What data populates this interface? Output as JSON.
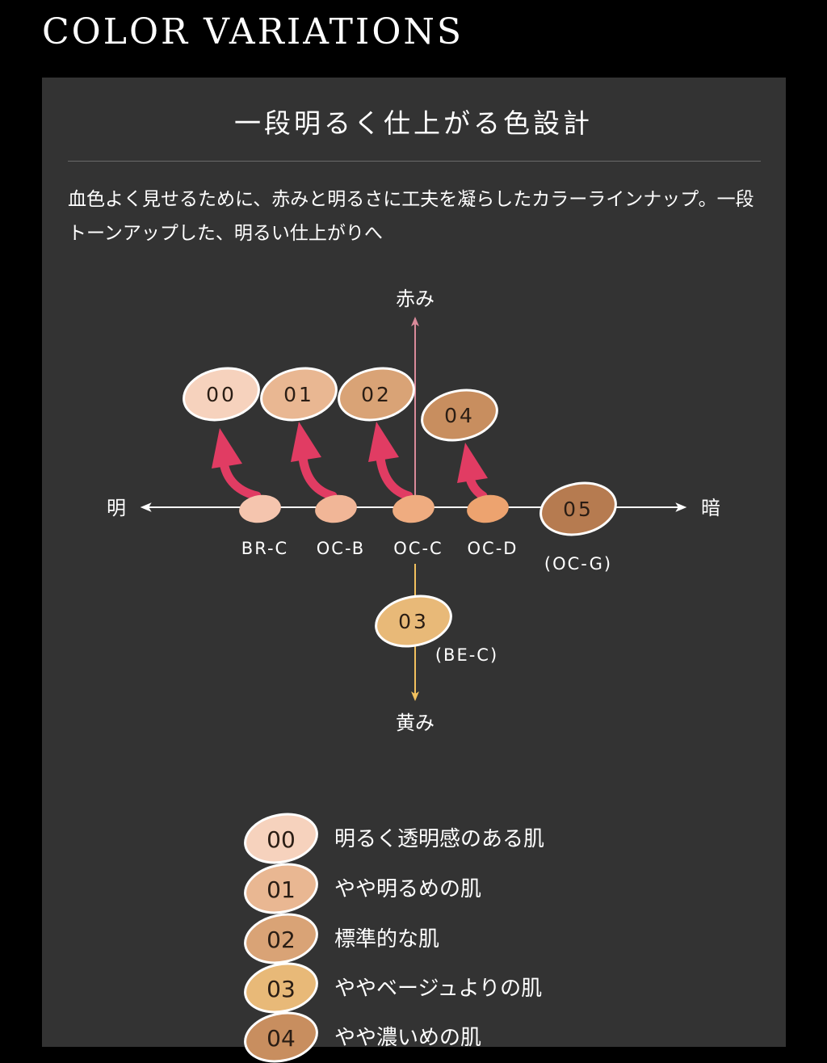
{
  "header": {
    "title": "COLOR VARIATIONS"
  },
  "panel": {
    "heading": "一段明るく仕上がる色設計",
    "description": "血色よく見せるために、赤みと明るさに工夫を凝らしたカラーラインナップ。一段トーンアップした、明るい仕上がりへ"
  },
  "diagram": {
    "axis_labels": {
      "up": "赤み",
      "down": "黄み",
      "left": "明",
      "right": "暗"
    },
    "colors": {
      "arrow_red": "#e13c63",
      "axis_red": "#d98a9a",
      "axis_yellow": "#f2c15e",
      "axis_white": "#ffffff"
    },
    "base_shades": [
      {
        "code": "BR-C",
        "color": "#f5c5ae"
      },
      {
        "code": "OC-B",
        "color": "#f1b697"
      },
      {
        "code": "OC-C",
        "color": "#efac80"
      },
      {
        "code": "OC-D",
        "color": "#eda36f"
      }
    ],
    "shades": [
      {
        "number": "00",
        "color": "#f6d2bd"
      },
      {
        "number": "01",
        "color": "#e9b792"
      },
      {
        "number": "02",
        "color": "#d9a376"
      },
      {
        "number": "04",
        "color": "#c88e5f"
      },
      {
        "number": "05",
        "color": "#b67b50",
        "base": "(OC-G)"
      },
      {
        "number": "03",
        "color": "#e8b978",
        "base": "(BE-C)"
      }
    ]
  },
  "legend": [
    {
      "number": "00",
      "label": "明るく透明感のある肌",
      "color": "#f6d2bd"
    },
    {
      "number": "01",
      "label": "やや明るめの肌",
      "color": "#e9b792"
    },
    {
      "number": "02",
      "label": "標準的な肌",
      "color": "#d9a376"
    },
    {
      "number": "03",
      "label": "ややベージュよりの肌",
      "color": "#e8b978"
    },
    {
      "number": "04",
      "label": "やや濃いめの肌",
      "color": "#c88e5f"
    }
  ]
}
